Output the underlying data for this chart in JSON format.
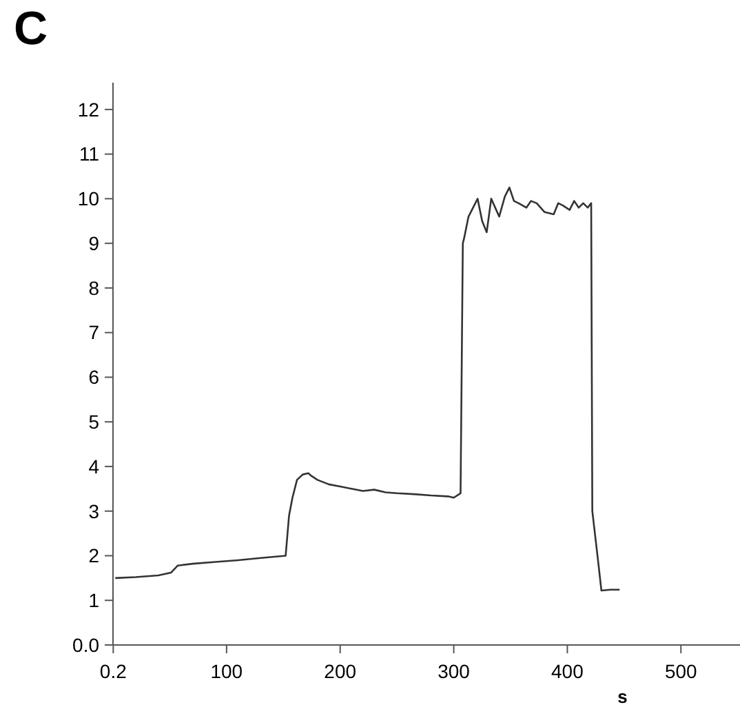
{
  "chart_data": {
    "type": "line",
    "title": "C",
    "xlabel": "s",
    "xlim": [
      0,
      552
    ],
    "ylim": [
      0,
      12.6
    ],
    "xticks": [
      0.2,
      100,
      200,
      300,
      400,
      500
    ],
    "yticks": [
      {
        "value": 0,
        "label": "0.0"
      },
      1,
      2,
      3,
      4,
      5,
      6,
      7,
      8,
      9,
      10,
      11,
      12
    ],
    "grid": false,
    "marker": "none",
    "line_style": "solid",
    "series": [
      {
        "color": "#333333",
        "x": [
          2,
          20,
          40,
          51,
          57,
          70,
          90,
          110,
          130,
          152,
          155,
          158,
          162,
          167,
          172,
          174,
          180,
          190,
          200,
          210,
          220,
          230,
          240,
          250,
          265,
          280,
          295,
          300,
          306,
          308,
          309,
          313,
          321,
          325,
          329,
          333,
          340,
          345,
          349,
          353,
          357,
          364,
          368,
          373,
          380,
          388,
          392,
          396,
          402,
          406,
          410,
          414,
          418,
          421,
          422,
          427,
          430,
          438,
          446
        ],
        "values": [
          1.5,
          1.52,
          1.56,
          1.62,
          1.78,
          1.82,
          1.86,
          1.9,
          1.95,
          2.0,
          2.9,
          3.3,
          3.7,
          3.82,
          3.85,
          3.8,
          3.7,
          3.6,
          3.55,
          3.5,
          3.45,
          3.48,
          3.42,
          3.4,
          3.38,
          3.35,
          3.33,
          3.3,
          3.4,
          9.0,
          9.1,
          9.6,
          10.0,
          9.5,
          9.25,
          10.0,
          9.6,
          10.05,
          10.25,
          9.95,
          9.9,
          9.8,
          9.95,
          9.9,
          9.7,
          9.65,
          9.9,
          9.85,
          9.75,
          9.95,
          9.8,
          9.9,
          9.8,
          9.9,
          3.0,
          1.9,
          1.22,
          1.24,
          1.24
        ]
      }
    ]
  }
}
